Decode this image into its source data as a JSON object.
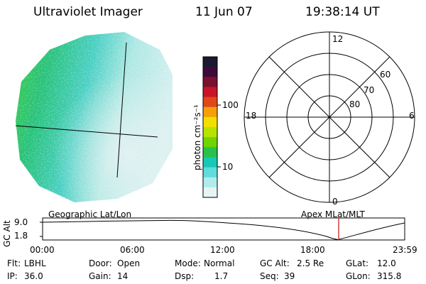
{
  "header": {
    "instrument": "Ultraviolet Imager",
    "date": "11 Jun 07",
    "time": "19:38:14 UT"
  },
  "colorbar": {
    "label": "photon cm⁻²s⁻¹",
    "ticks": [
      "100",
      "10"
    ],
    "colors": [
      "#1a1a2e",
      "#3b0a3a",
      "#7a1030",
      "#c81426",
      "#e0471a",
      "#f5a00a",
      "#f0e000",
      "#b8e200",
      "#70d400",
      "#28c24a",
      "#18c8b4",
      "#60dcdc",
      "#b0ecec",
      "#e6f4f4"
    ]
  },
  "polar": {
    "mlt_labels": {
      "top": "12",
      "bottom": "0",
      "left": "18",
      "right": "6"
    },
    "lat_labels": [
      "60",
      "70",
      "80"
    ]
  },
  "timeline": {
    "axis_label": "GC Alt",
    "y_ticks": [
      "9.0",
      "1.8"
    ],
    "left_caption": "Geographic Lat/Lon",
    "right_caption": "Apex MLat/MLT",
    "x_ticks": [
      "00:00",
      "06:00",
      "12:00",
      "18:00",
      "23:59"
    ],
    "marker_time": "19:38"
  },
  "info": {
    "filter_label": "Flt:",
    "filter_value": "LBHL",
    "ip_label": "IP:",
    "ip_value": "36.0",
    "door_label": "Door:",
    "door_value": "Open",
    "gain_label": "Gain:",
    "gain_value": "14",
    "mode_label": "Mode:",
    "mode_value": "Normal",
    "dsp_label": "Dsp:",
    "dsp_value": "1.7",
    "gcalt_label": "GC Alt:",
    "gcalt_value": "2.5 Re",
    "seq_label": "Seq:",
    "seq_value": "39",
    "glat_label": "GLat:",
    "glat_value": "12.0",
    "glon_label": "GLon:",
    "glon_value": "315.8"
  }
}
